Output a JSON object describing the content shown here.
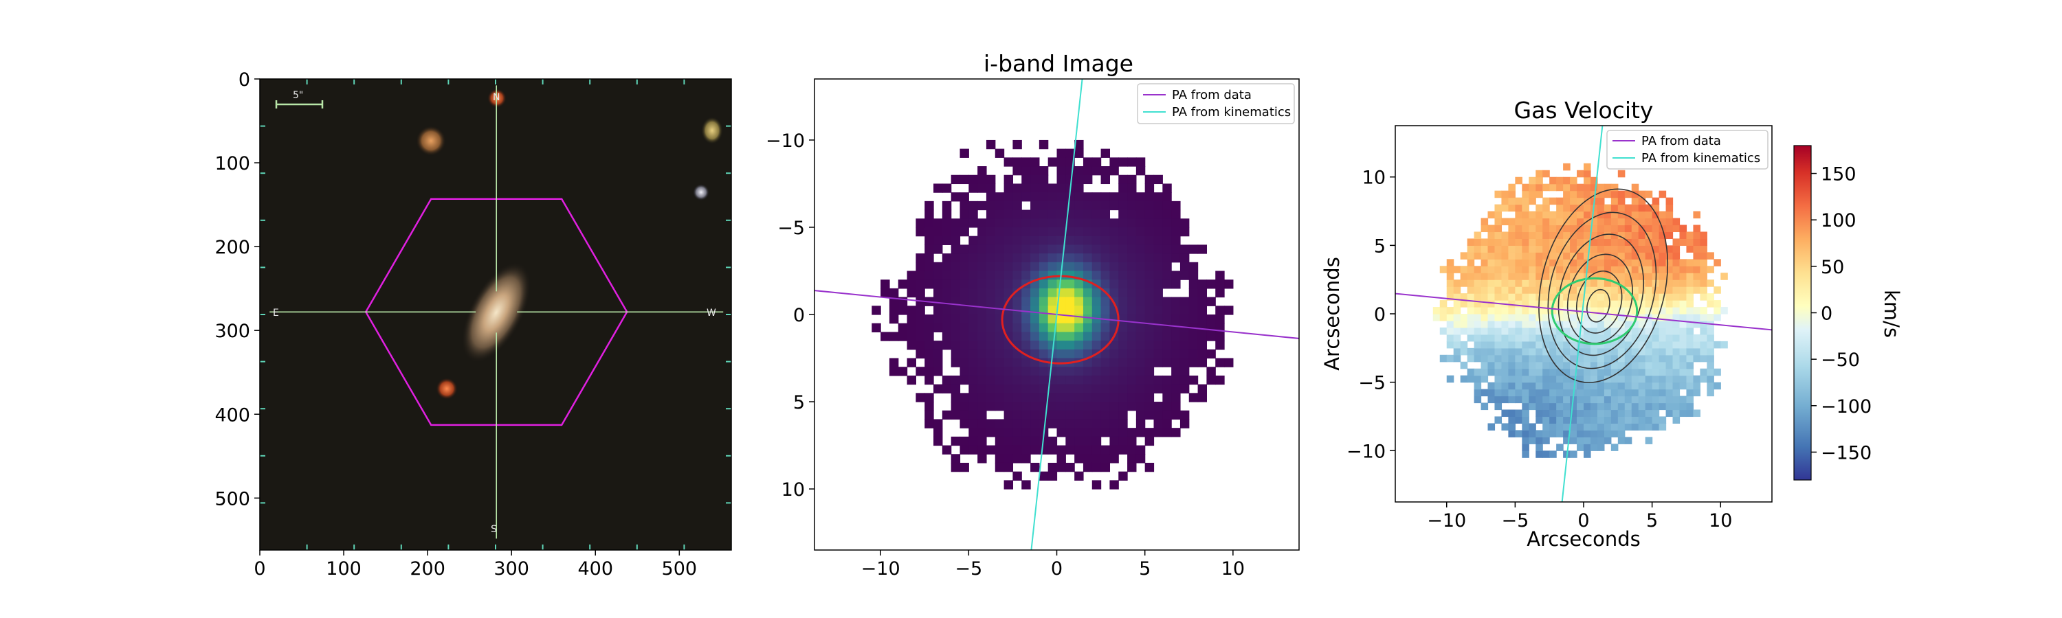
{
  "colors": {
    "pa_data": "#9932cc",
    "pa_kinematics": "#40e0d0",
    "hexagon": "#e020e0",
    "crosshair": "#b8e6a8",
    "ellipse": "#e02020",
    "contour_green": "#2ecc71"
  },
  "chart_data": [
    {
      "type": "image",
      "panel": "sdss-cutout",
      "xlim": [
        0,
        562
      ],
      "ylim": [
        562,
        0
      ],
      "xticks": [
        "0",
        "100",
        "200",
        "300",
        "400",
        "500"
      ],
      "yticks": [
        "0",
        "100",
        "200",
        "300",
        "400",
        "500"
      ],
      "compass": {
        "north": "N",
        "south": "S",
        "east": "E",
        "west": "W"
      },
      "scale_bar_label": "5\"",
      "galaxy_center": [
        282,
        278
      ]
    },
    {
      "type": "heatmap",
      "panel": "i-band",
      "title": "i-band Image",
      "xlim": [
        -13.75,
        13.75
      ],
      "ylim": [
        13.5,
        -13.5
      ],
      "xticks": [
        "−10",
        "−5",
        "0",
        "5",
        "10"
      ],
      "yticks": [
        "−10",
        "−5",
        "0",
        "5",
        "10"
      ],
      "legend": [
        "PA from data",
        "PA from kinematics"
      ],
      "legend_loc": "upper right",
      "colormap": "viridis",
      "ellipse": {
        "center": [
          0.2,
          0.3
        ],
        "semi_axes": [
          3.3,
          2.5
        ]
      }
    },
    {
      "type": "heatmap",
      "panel": "gas-velocity",
      "title": "Gas Velocity",
      "xlabel": "Arcseconds",
      "ylabel": "Arcseconds",
      "xlim": [
        -13.75,
        13.75
      ],
      "ylim": [
        -13.75,
        13.75
      ],
      "xticks": [
        "−10",
        "−5",
        "0",
        "5",
        "10"
      ],
      "yticks": [
        "10",
        "5",
        "0",
        "−5",
        "−10"
      ],
      "legend": [
        "PA from data",
        "PA from kinematics"
      ],
      "legend_loc": "upper right",
      "colormap": "RdYlBu_r",
      "colorbar": {
        "label": "km/s",
        "range": [
          -180,
          180
        ],
        "ticks": [
          "150",
          "100",
          "50",
          "0",
          "−50",
          "−100",
          "−150"
        ]
      }
    }
  ]
}
